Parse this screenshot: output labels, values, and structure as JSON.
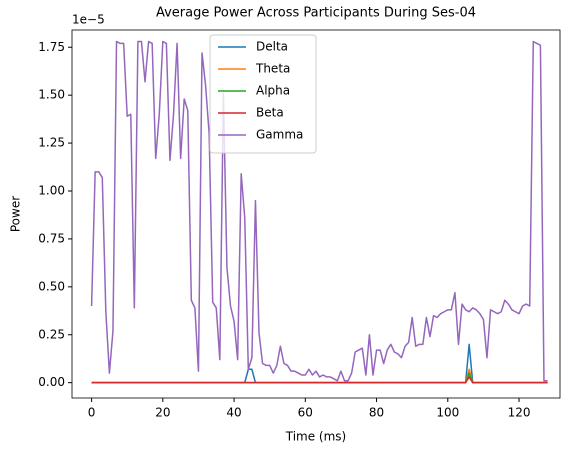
{
  "chart_data": {
    "type": "line",
    "title": "Average Power Across Participants During Ses-04",
    "xlabel": "Time (ms)",
    "ylabel": "Power",
    "y_offset_label": "1e−5",
    "xlim": [
      -5.5,
      131.5
    ],
    "ylim": [
      -0.08,
      1.84
    ],
    "xticks": [
      0,
      20,
      40,
      60,
      80,
      100,
      120
    ],
    "yticks": [
      {
        "value": 0,
        "label": "0.00"
      },
      {
        "value": 0.25,
        "label": "0.25"
      },
      {
        "value": 0.5,
        "label": "0.50"
      },
      {
        "value": 0.75,
        "label": "0.75"
      },
      {
        "value": 1,
        "label": "1.00"
      },
      {
        "value": 1.25,
        "label": "1.25"
      },
      {
        "value": 1.5,
        "label": "1.50"
      },
      {
        "value": 1.75,
        "label": "1.75"
      }
    ],
    "legend": "upper center",
    "x": [
      0,
      1,
      2,
      3,
      4,
      5,
      6,
      7,
      8,
      9,
      10,
      11,
      12,
      13,
      14,
      15,
      16,
      17,
      18,
      19,
      20,
      21,
      22,
      23,
      24,
      25,
      26,
      27,
      28,
      29,
      30,
      31,
      32,
      33,
      34,
      35,
      36,
      37,
      38,
      39,
      40,
      41,
      42,
      43,
      44,
      45,
      46,
      47,
      48,
      49,
      50,
      51,
      52,
      53,
      54,
      55,
      56,
      57,
      58,
      59,
      60,
      61,
      62,
      63,
      64,
      65,
      66,
      67,
      68,
      69,
      70,
      71,
      72,
      73,
      74,
      75,
      76,
      77,
      78,
      79,
      80,
      81,
      82,
      83,
      84,
      85,
      86,
      87,
      88,
      89,
      90,
      91,
      92,
      93,
      94,
      95,
      96,
      97,
      98,
      99,
      100,
      101,
      102,
      103,
      104,
      105,
      106,
      107,
      108,
      109,
      110,
      111,
      112,
      113,
      114,
      115,
      116,
      117,
      118,
      119,
      120,
      121,
      122,
      123,
      124,
      125,
      126,
      127,
      128
    ],
    "series": [
      {
        "name": "Delta",
        "color": "#1f77b4",
        "values": [
          0,
          0,
          0,
          0,
          0,
          0,
          0,
          0,
          0,
          0,
          0,
          0,
          0,
          0,
          0,
          0,
          0,
          0,
          0,
          0,
          0,
          0,
          0,
          0,
          0,
          0,
          0,
          0,
          0,
          0,
          0,
          0,
          0,
          0,
          0,
          0,
          0,
          0,
          0,
          0,
          0,
          0,
          0,
          0,
          0.07,
          0.07,
          0,
          0,
          0,
          0,
          0,
          0,
          0,
          0,
          0,
          0,
          0,
          0,
          0,
          0,
          0,
          0,
          0,
          0,
          0,
          0,
          0,
          0,
          0,
          0,
          0,
          0,
          0,
          0,
          0,
          0,
          0,
          0,
          0,
          0,
          0,
          0,
          0,
          0,
          0,
          0,
          0,
          0,
          0,
          0,
          0,
          0,
          0,
          0,
          0,
          0,
          0,
          0,
          0,
          0,
          0,
          0,
          0,
          0,
          0,
          0,
          0.2,
          0,
          0,
          0,
          0,
          0,
          0,
          0,
          0,
          0,
          0,
          0,
          0,
          0,
          0,
          0,
          0,
          0,
          0,
          0,
          0,
          0,
          0
        ]
      },
      {
        "name": "Theta",
        "color": "#ff7f0e",
        "values": [
          0,
          0,
          0,
          0,
          0,
          0,
          0,
          0,
          0,
          0,
          0,
          0,
          0,
          0,
          0,
          0,
          0,
          0,
          0,
          0,
          0,
          0,
          0,
          0,
          0,
          0,
          0,
          0,
          0,
          0,
          0,
          0,
          0,
          0,
          0,
          0,
          0,
          0,
          0,
          0,
          0,
          0,
          0,
          0,
          0,
          0,
          0,
          0,
          0,
          0,
          0,
          0,
          0,
          0,
          0,
          0,
          0,
          0,
          0,
          0,
          0,
          0,
          0,
          0,
          0,
          0,
          0,
          0,
          0,
          0,
          0,
          0,
          0,
          0,
          0,
          0,
          0,
          0,
          0,
          0,
          0,
          0,
          0,
          0,
          0,
          0,
          0,
          0,
          0,
          0,
          0,
          0,
          0,
          0,
          0,
          0,
          0,
          0,
          0,
          0,
          0,
          0,
          0,
          0,
          0,
          0,
          0.07,
          0,
          0,
          0,
          0,
          0,
          0,
          0,
          0,
          0,
          0,
          0,
          0,
          0,
          0,
          0,
          0,
          0,
          0,
          0,
          0,
          0,
          0
        ]
      },
      {
        "name": "Alpha",
        "color": "#2ca02c",
        "values": [
          0,
          0,
          0,
          0,
          0,
          0,
          0,
          0,
          0,
          0,
          0,
          0,
          0,
          0,
          0,
          0,
          0,
          0,
          0,
          0,
          0,
          0,
          0,
          0,
          0,
          0,
          0,
          0,
          0,
          0,
          0,
          0,
          0,
          0,
          0,
          0,
          0,
          0,
          0,
          0,
          0,
          0,
          0,
          0,
          0,
          0,
          0,
          0,
          0,
          0,
          0,
          0,
          0,
          0,
          0,
          0,
          0,
          0,
          0,
          0,
          0,
          0,
          0,
          0,
          0,
          0,
          0,
          0,
          0,
          0,
          0,
          0,
          0,
          0,
          0,
          0,
          0,
          0,
          0,
          0,
          0,
          0,
          0,
          0,
          0,
          0,
          0,
          0,
          0,
          0,
          0,
          0,
          0,
          0,
          0,
          0,
          0,
          0,
          0,
          0,
          0,
          0,
          0,
          0,
          0,
          0,
          0.05,
          0,
          0,
          0,
          0,
          0,
          0,
          0,
          0,
          0,
          0,
          0,
          0,
          0,
          0,
          0,
          0,
          0,
          0,
          0,
          0,
          0,
          0
        ]
      },
      {
        "name": "Beta",
        "color": "#d62728",
        "values": [
          0,
          0,
          0,
          0,
          0,
          0,
          0,
          0,
          0,
          0,
          0,
          0,
          0,
          0,
          0,
          0,
          0,
          0,
          0,
          0,
          0,
          0,
          0,
          0,
          0,
          0,
          0,
          0,
          0,
          0,
          0,
          0,
          0,
          0,
          0,
          0,
          0,
          0,
          0,
          0,
          0,
          0,
          0,
          0,
          0,
          0,
          0,
          0,
          0,
          0,
          0,
          0,
          0,
          0,
          0,
          0,
          0,
          0,
          0,
          0,
          0,
          0,
          0,
          0,
          0,
          0,
          0,
          0,
          0,
          0,
          0,
          0,
          0,
          0,
          0,
          0,
          0,
          0,
          0,
          0,
          0,
          0,
          0,
          0,
          0,
          0,
          0,
          0,
          0,
          0,
          0,
          0,
          0,
          0,
          0,
          0,
          0,
          0,
          0,
          0,
          0,
          0,
          0,
          0,
          0,
          0,
          0.03,
          0,
          0,
          0,
          0,
          0,
          0,
          0,
          0,
          0,
          0,
          0,
          0,
          0,
          0,
          0,
          0,
          0,
          0,
          0,
          0,
          0,
          0
        ]
      },
      {
        "name": "Gamma",
        "color": "#9467bd",
        "values": [
          0.4,
          1.1,
          1.1,
          1.07,
          0.37,
          0.05,
          0.27,
          1.78,
          1.77,
          1.77,
          1.39,
          1.4,
          0.39,
          1.78,
          1.78,
          1.57,
          1.78,
          1.77,
          1.17,
          1.4,
          1.78,
          1.77,
          1.16,
          1.4,
          1.77,
          1.17,
          1.48,
          1.42,
          0.43,
          0.39,
          0.06,
          1.72,
          1.55,
          1.3,
          0.42,
          0.39,
          0.12,
          1.51,
          0.6,
          0.4,
          0.32,
          0.12,
          1.09,
          0.86,
          0.07,
          0.13,
          0.95,
          0.26,
          0.1,
          0.09,
          0.09,
          0.05,
          0.09,
          0.19,
          0.1,
          0.09,
          0.06,
          0.06,
          0.05,
          0.04,
          0.04,
          0.07,
          0.04,
          0.06,
          0.03,
          0.04,
          0.03,
          0.03,
          0.02,
          0.01,
          0.06,
          0.01,
          0.01,
          0.05,
          0.16,
          0.17,
          0.18,
          0.04,
          0.25,
          0.04,
          0.17,
          0.17,
          0.1,
          0.17,
          0.2,
          0.16,
          0.15,
          0.13,
          0.19,
          0.21,
          0.34,
          0.19,
          0.2,
          0.2,
          0.34,
          0.24,
          0.35,
          0.34,
          0.36,
          0.37,
          0.38,
          0.38,
          0.47,
          0.2,
          0.41,
          0.38,
          0.37,
          0.39,
          0.38,
          0.36,
          0.33,
          0.13,
          0.38,
          0.37,
          0.36,
          0.37,
          0.43,
          0.41,
          0.38,
          0.37,
          0.36,
          0.4,
          0.41,
          0.4,
          1.78,
          1.77,
          1.76,
          0.01,
          0.01
        ]
      }
    ]
  }
}
